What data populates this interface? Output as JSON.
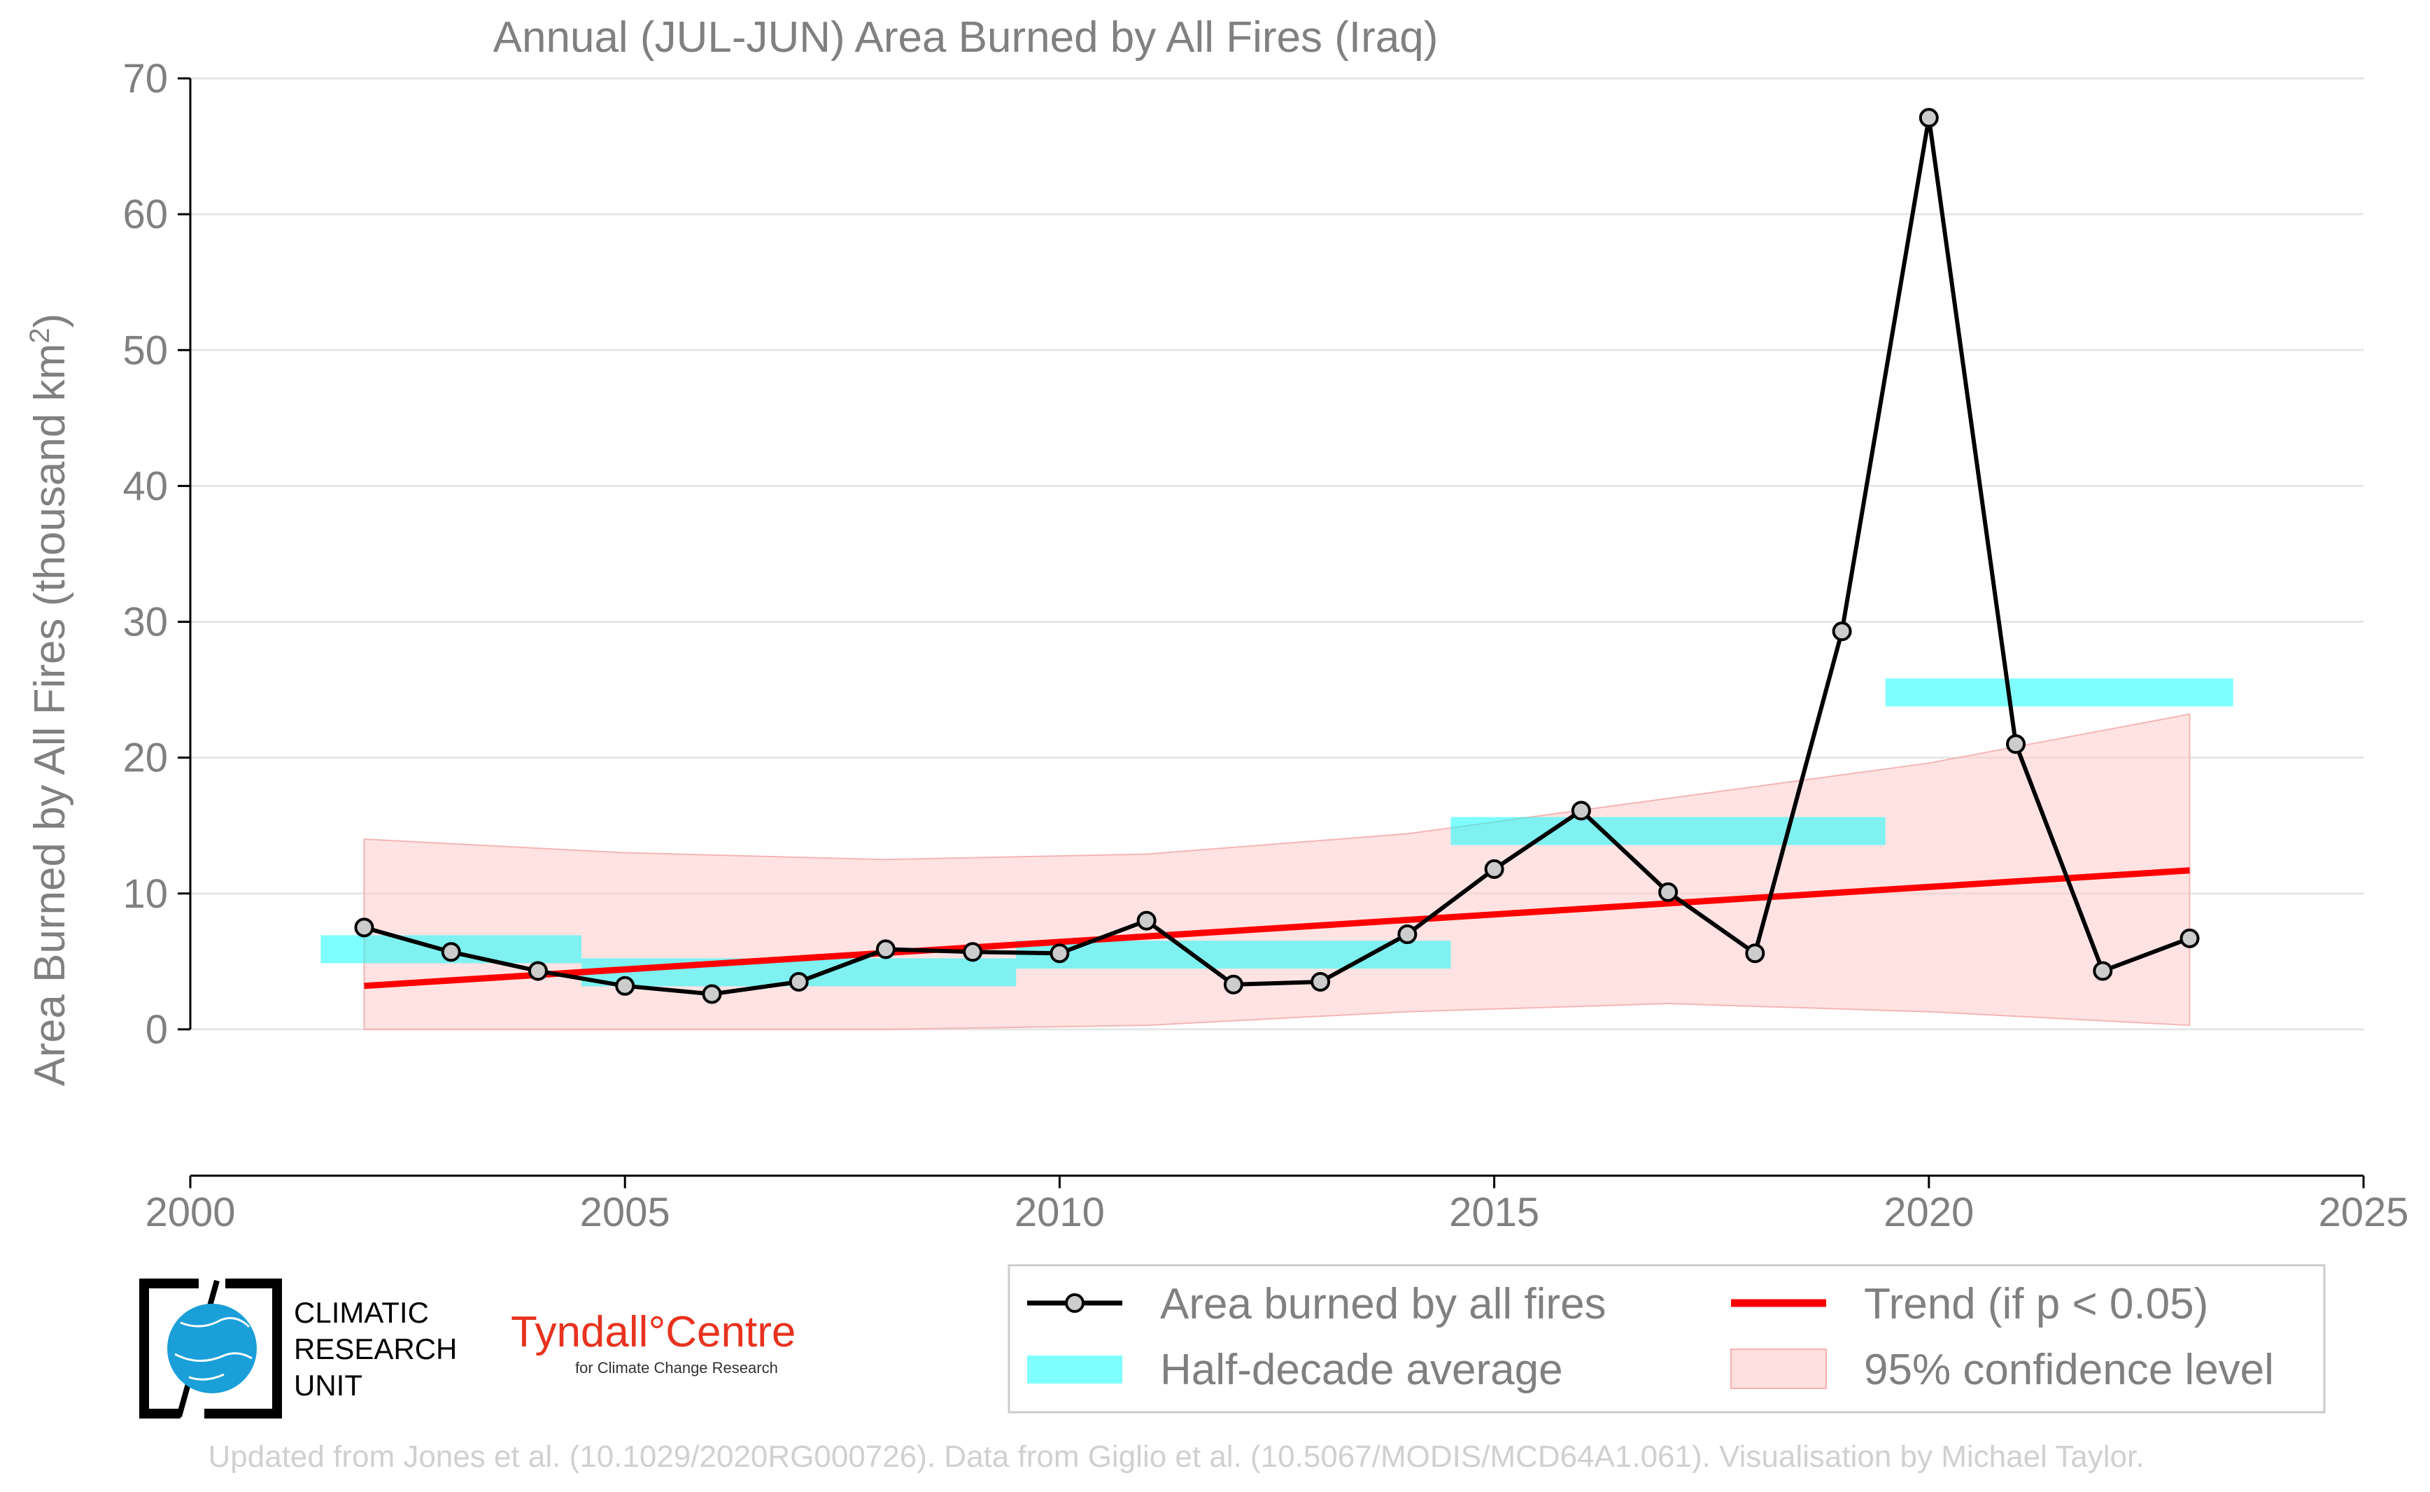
{
  "chart_data": {
    "type": "line",
    "title": "Annual (JUL-JUN) Area Burned by All Fires (Iraq)",
    "xlabel": "",
    "ylabel": "Area Burned by All Fires (thousand km²)",
    "xlim": [
      2000,
      2025
    ],
    "ylim": [
      -5,
      70
    ],
    "xticks": [
      "2000",
      "2005",
      "2010",
      "2015",
      "2020",
      "2025"
    ],
    "yticks": [
      "0",
      "10",
      "20",
      "30",
      "40",
      "50",
      "60",
      "70"
    ],
    "grid": "horizontal",
    "series": [
      {
        "name": "Area burned by all fires",
        "color": "#000000",
        "x": [
          2002,
          2003,
          2004,
          2005,
          2006,
          2007,
          2008,
          2009,
          2010,
          2011,
          2012,
          2013,
          2014,
          2015,
          2016,
          2017,
          2018,
          2019,
          2020,
          2021,
          2022,
          2023
        ],
        "values": [
          7.5,
          5.7,
          4.3,
          3.2,
          2.6,
          3.5,
          5.9,
          5.7,
          5.6,
          8.0,
          3.3,
          3.5,
          7.0,
          11.8,
          16.1,
          10.1,
          5.6,
          29.3,
          67.1,
          21.0,
          4.3,
          6.7
        ]
      }
    ],
    "half_decade_average": {
      "name": "Half-decade average",
      "color": "#00ffff",
      "segments": [
        {
          "x": [
            2001.5,
            2004.5
          ],
          "value": 5.9
        },
        {
          "x": [
            2004.5,
            2009.5
          ],
          "value": 4.2
        },
        {
          "x": [
            2009.5,
            2014.5
          ],
          "value": 5.5
        },
        {
          "x": [
            2014.5,
            2019.5
          ],
          "value": 14.6
        },
        {
          "x": [
            2019.5,
            2023.5
          ],
          "value": 24.8
        }
      ]
    },
    "trend": {
      "name": "Trend (if p < 0.05)",
      "color": "#ff0000",
      "x": [
        2002,
        2023
      ],
      "values": [
        3.2,
        11.7
      ]
    },
    "confidence_band": {
      "name": "95% confidence level",
      "color": "#ffcccc",
      "x": [
        2002,
        2005,
        2008,
        2011,
        2014,
        2017,
        2020,
        2023
      ],
      "lower": [
        0,
        0,
        0,
        0.3,
        1.3,
        1.9,
        1.3,
        0.3
      ],
      "upper": [
        14.0,
        13.0,
        12.5,
        12.9,
        14.4,
        17.0,
        19.6,
        23.2
      ]
    },
    "legend_position": "bottom-right"
  },
  "legend": {
    "series_label": "Area burned by all fires",
    "average_label": "Half-decade average",
    "trend_label": "Trend (if p < 0.05)",
    "band_label": "95% confidence level"
  },
  "logos": {
    "cru_line1": "CLIMATIC",
    "cru_line2": "RESEARCH",
    "cru_line3": "UNIT",
    "tyndall_name": "Tyndall°Centre",
    "tyndall_sub": "for Climate Change Research"
  },
  "footer": "Updated from Jones et al. (10.1029/2020RG000726). Data from Giglio et al. (10.5067/MODIS/MCD64A1.061). Visualisation by Michael Taylor."
}
